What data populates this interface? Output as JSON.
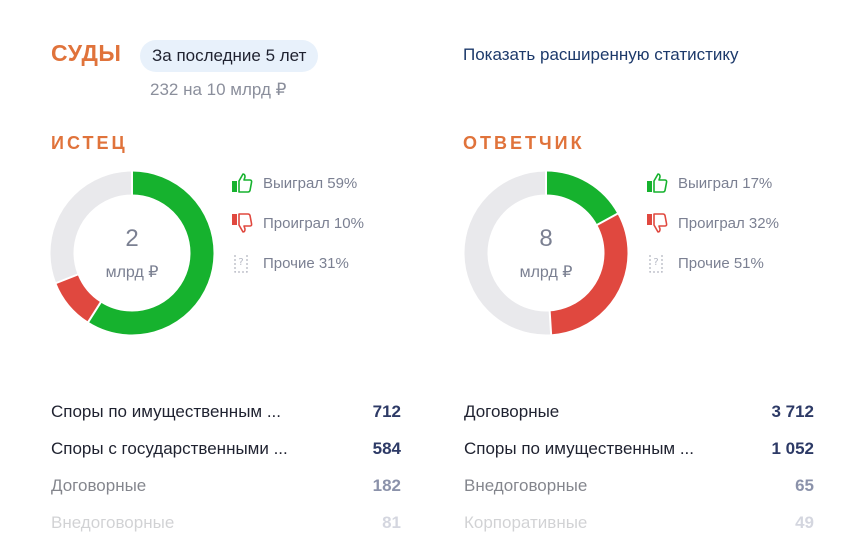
{
  "header": {
    "title": "СУДЫ",
    "period": "За последние 5 лет",
    "summary": "232 на 10 млрд ₽",
    "stats_link": "Показать расширенную статистику"
  },
  "plaintiff": {
    "title": "ИСТЕЦ",
    "total": "2",
    "unit": "млрд ₽",
    "won": "Выиграл 59%",
    "lost": "Проиграл 10%",
    "other": "Прочие 31%",
    "shares": {
      "won": 59,
      "lost": 10,
      "other": 31
    },
    "categories": [
      {
        "label": "Споры по имущественным ...",
        "value": "712"
      },
      {
        "label": "Споры с государственными ...",
        "value": "584"
      },
      {
        "label": "Договорные",
        "value": "182"
      },
      {
        "label": "Внедоговорные",
        "value": "81"
      }
    ]
  },
  "defendant": {
    "title": "ОТВЕТЧИК",
    "total": "8",
    "unit": "млрд ₽",
    "won": "Выиграл 17%",
    "lost": "Проиграл 32%",
    "other": "Прочие 51%",
    "shares": {
      "won": 17,
      "lost": 32,
      "other": 51
    },
    "categories": [
      {
        "label": "Договорные",
        "value": "3 712"
      },
      {
        "label": "Споры по имущественным ...",
        "value": "1 052"
      },
      {
        "label": "Внедоговорные",
        "value": "65"
      },
      {
        "label": "Корпоративные",
        "value": "49"
      }
    ]
  },
  "colors": {
    "accent": "#e0733b",
    "won": "#16b22e",
    "lost": "#e0483f",
    "other": "#e9e9ec"
  },
  "icons": {
    "won": "thumbs-up-icon",
    "lost": "thumbs-down-icon",
    "other": "question-doc-icon"
  }
}
